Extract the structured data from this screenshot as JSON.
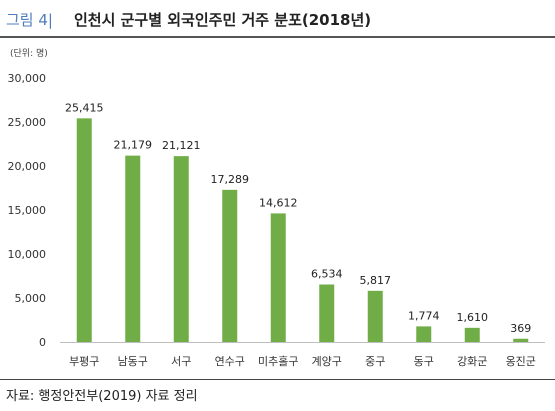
{
  "header": {
    "label": "그림 4|",
    "title": "인천시 군구별 외국인주민 거주 분포(2018년)"
  },
  "unit_note": "(단위: 명)",
  "source": "자료: 행정안전부(2019) 자료 정리",
  "colors": {
    "bar": "#70ad47",
    "accent": "#4f7dbd"
  },
  "chart_data": {
    "type": "bar",
    "categories": [
      "부평구",
      "남동구",
      "서구",
      "연수구",
      "미추홀구",
      "계양구",
      "중구",
      "동구",
      "강화군",
      "옹진군"
    ],
    "values": [
      25415,
      21179,
      21121,
      17289,
      14612,
      6534,
      5817,
      1774,
      1610,
      369
    ],
    "value_labels": [
      "25,415",
      "21,179",
      "21,121",
      "17,289",
      "14,612",
      "6,534",
      "5,817",
      "1,774",
      "1,610",
      "369"
    ],
    "yticks": [
      "0",
      "5,000",
      "10,000",
      "15,000",
      "20,000",
      "25,000",
      "30,000"
    ],
    "ylim": [
      0,
      30000
    ],
    "title": "",
    "xlabel": "",
    "ylabel": "",
    "grid": false,
    "legend": "none"
  }
}
